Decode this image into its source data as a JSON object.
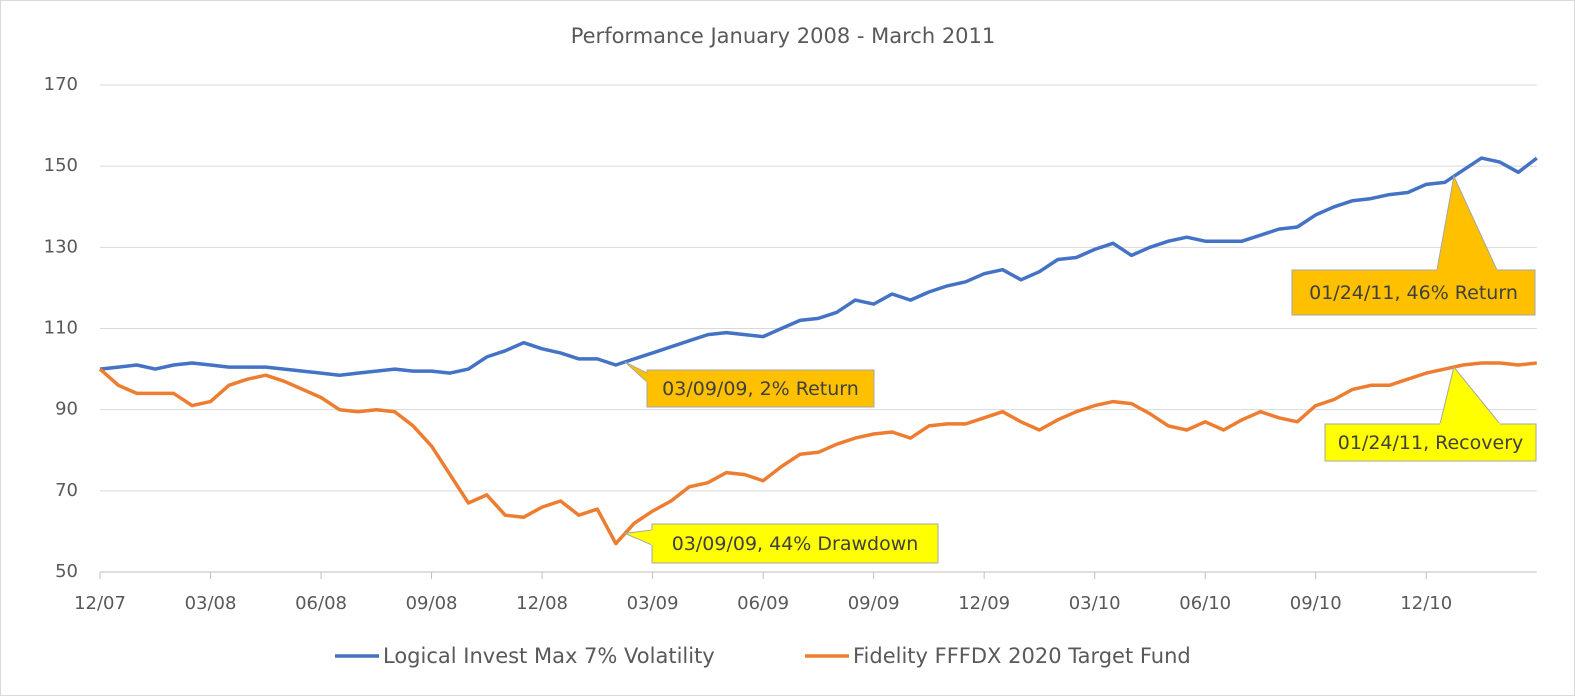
{
  "chart_data": {
    "type": "line",
    "title": "Performance January 2008 - March 2011",
    "categories": [
      "12/07",
      null,
      null,
      null,
      null,
      null,
      "03/08",
      null,
      null,
      null,
      null,
      null,
      "06/08",
      null,
      null,
      null,
      null,
      null,
      "09/08",
      null,
      null,
      null,
      null,
      null,
      "12/08",
      null,
      null,
      null,
      null,
      null,
      "03/09",
      null,
      null,
      null,
      null,
      null,
      "06/09",
      null,
      null,
      null,
      null,
      null,
      "09/09",
      null,
      null,
      null,
      null,
      null,
      "12/09",
      null,
      null,
      null,
      null,
      null,
      "03/10",
      null,
      null,
      null,
      null,
      null,
      "06/10",
      null,
      null,
      null,
      null,
      null,
      "09/10",
      null,
      null,
      null,
      null,
      null,
      "12/10",
      null,
      null,
      null,
      null,
      null,
      null
    ],
    "series": [
      {
        "name": "Logical Invest Max 7% Volatility",
        "color": "#4472c4",
        "values": [
          100,
          100.5,
          101,
          100,
          101,
          101.5,
          101,
          100.5,
          100.5,
          100.5,
          100,
          99.5,
          99,
          98.5,
          99,
          99.5,
          100,
          99.5,
          99.5,
          99,
          100,
          103,
          104.5,
          106.5,
          105,
          104,
          102.5,
          102.5,
          101,
          102.5,
          104,
          105.5,
          107,
          108.5,
          109,
          108.5,
          108,
          110,
          112,
          112.5,
          114,
          117,
          116,
          118.5,
          117,
          119,
          120.5,
          121.5,
          123.5,
          124.5,
          122,
          124,
          127,
          127.5,
          129.5,
          131,
          128,
          130,
          131.5,
          132.5,
          131.5,
          131.5,
          131.5,
          133,
          134.5,
          135,
          138,
          140,
          141.5,
          142,
          143,
          143.5,
          145.5,
          146,
          149,
          152,
          151,
          148.5,
          152
        ]
      },
      {
        "name": "Fidelity FFFDX 2020 Target Fund",
        "color": "#ed7d31",
        "values": [
          100,
          96,
          94,
          94,
          94,
          91,
          92,
          96,
          97.5,
          98.5,
          97,
          95,
          93,
          90,
          89.5,
          90,
          89.5,
          86,
          81,
          74,
          67,
          69,
          64,
          63.5,
          66,
          67.5,
          64,
          65.5,
          57,
          62,
          65,
          67.5,
          71,
          72,
          74.5,
          74,
          72.5,
          76,
          79,
          79.5,
          81.5,
          83,
          84,
          84.5,
          83,
          86,
          86.5,
          86.5,
          88,
          89.5,
          87,
          85,
          87.5,
          89.5,
          91,
          92,
          91.5,
          89,
          86,
          85,
          87,
          85,
          87.5,
          89.5,
          88,
          87,
          91,
          92.5,
          95,
          96,
          96,
          97.5,
          99,
          100,
          101,
          101.5,
          101.5,
          101,
          101.5
        ]
      }
    ],
    "ylim": [
      50,
      170
    ],
    "yticks": [
      50,
      70,
      90,
      110,
      130,
      150,
      170
    ],
    "grid": true,
    "legend": "bottom",
    "annotations": [
      {
        "text": "03/09/09, 2% Return",
        "color": "#ffc000"
      },
      {
        "text": "03/09/09, 44% Drawdown",
        "color": "#ffff00"
      },
      {
        "text": "01/24/11, 46% Return",
        "color": "#ffc000"
      },
      {
        "text": "01/24/11, Recovery",
        "color": "#ffff00"
      }
    ]
  }
}
